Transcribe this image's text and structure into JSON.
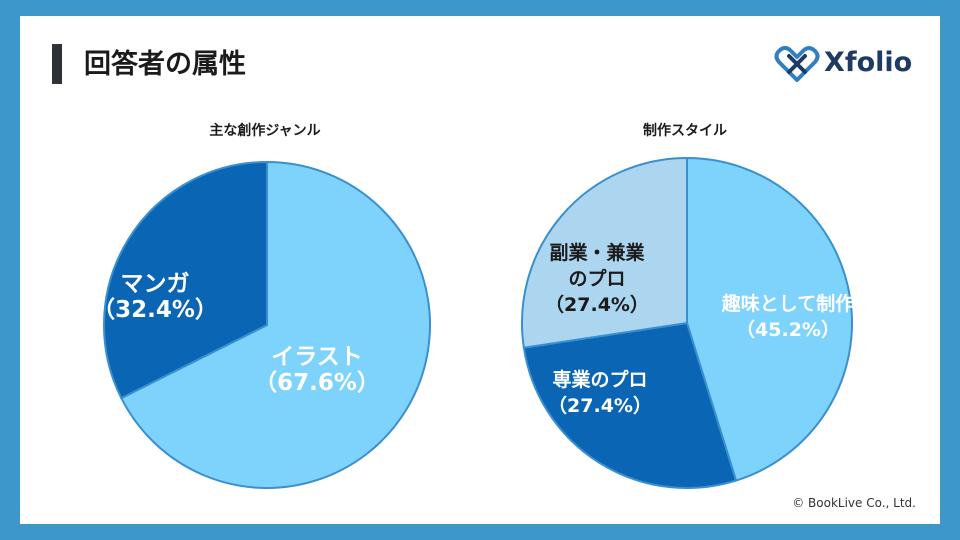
{
  "slide": {
    "title": "回答者の属性",
    "logo_text": "Xfolio",
    "logo_icon": "heart-x-logo-icon",
    "copyright": "© BookLive Co., Ltd."
  },
  "colors": {
    "background": "#3d97c9",
    "light_blue": "#7dd3fc",
    "dark_blue": "#0a66b5",
    "pale_blue": "#acd6ef",
    "edge": "#3a8fd0"
  },
  "chart_data": [
    {
      "type": "pie",
      "title": "主な創作ジャンル",
      "slices": [
        {
          "label": "イラスト",
          "value": 67.6,
          "value_label": "（67.6%）",
          "color": "#7dd3fc",
          "text_color": "#ffffff"
        },
        {
          "label": "マンガ",
          "value": 32.4,
          "value_label": "（32.4%）",
          "color": "#0a66b5",
          "text_color": "#ffffff"
        }
      ]
    },
    {
      "type": "pie",
      "title": "制作スタイル",
      "slices": [
        {
          "label": "趣味として制作",
          "value": 45.2,
          "value_label": "（45.2%）",
          "color": "#7dd3fc",
          "text_color": "#ffffff"
        },
        {
          "label": "専業のプロ",
          "value": 27.4,
          "value_label": "（27.4%）",
          "color": "#0a66b5",
          "text_color": "#ffffff"
        },
        {
          "label": "副業・兼業のプロ",
          "label_lines": [
            "副業・兼業",
            "のプロ"
          ],
          "value": 27.4,
          "value_label": "（27.4%）",
          "color": "#acd6ef",
          "text_color": "#1b1b1b"
        }
      ]
    }
  ]
}
